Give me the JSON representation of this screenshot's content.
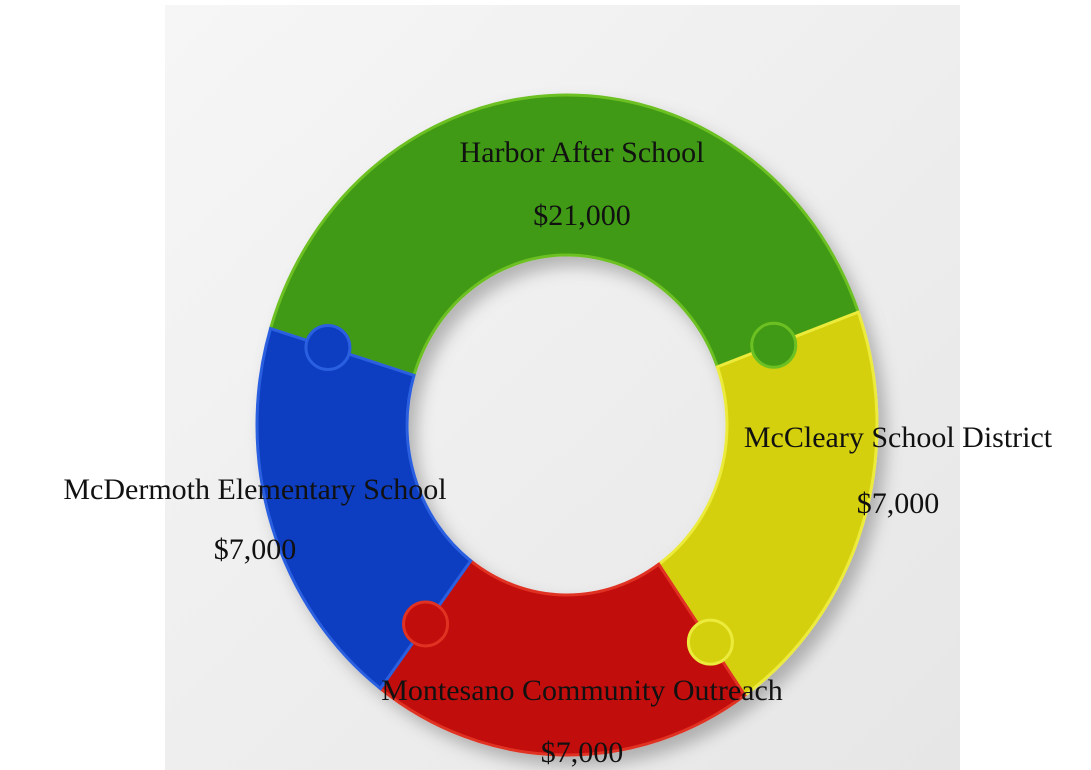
{
  "pieces": [
    {
      "label": "Harbor After School",
      "amount": "$21,000"
    },
    {
      "label": "McCleary School District",
      "amount": "$7,000"
    },
    {
      "label": "Montesano Community Outreach",
      "amount": "$7,000"
    },
    {
      "label": "McDermoth Elementary School",
      "amount": "$7,000"
    }
  ]
}
